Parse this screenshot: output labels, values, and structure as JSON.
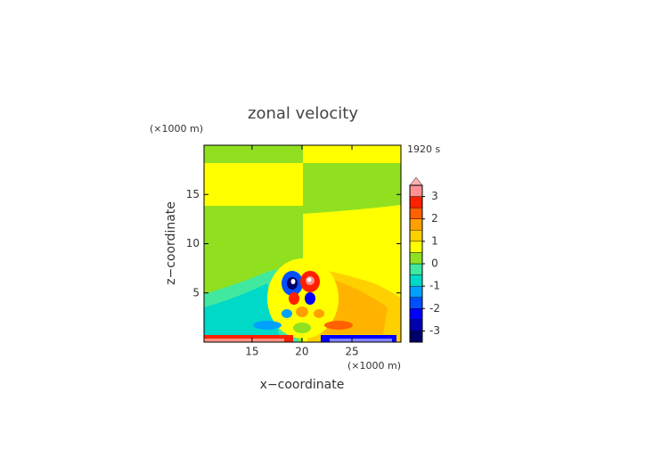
{
  "chart_data": {
    "type": "contour",
    "title": "zonal velocity",
    "x_label": "x−coordinate",
    "y_label": "z−coordinate",
    "x_unit": "(×1000 m)",
    "y_unit": "(×1000 m)",
    "time_label": "1920 s",
    "xlim": [
      10.2,
      29.9
    ],
    "ylim": [
      0,
      20
    ],
    "xticks": [
      15,
      20,
      25
    ],
    "yticks": [
      5,
      10,
      15
    ],
    "colorbar": {
      "levels": [
        -3.5,
        -3,
        -2.5,
        -2,
        -1.5,
        -1,
        -0.5,
        0,
        0.5,
        1,
        1.5,
        2,
        2.5,
        3,
        3.5
      ],
      "colors": [
        "#00006a",
        "#0000b0",
        "#0000ff",
        "#0050ff",
        "#00a0ff",
        "#00d8c8",
        "#40e8a0",
        "#90e020",
        "#ffff00",
        "#ffd000",
        "#ffa000",
        "#ff6000",
        "#ff2000",
        "#ff9090"
      ],
      "ticks": [
        -3,
        -2,
        -1,
        0,
        1,
        2,
        3
      ]
    }
  }
}
